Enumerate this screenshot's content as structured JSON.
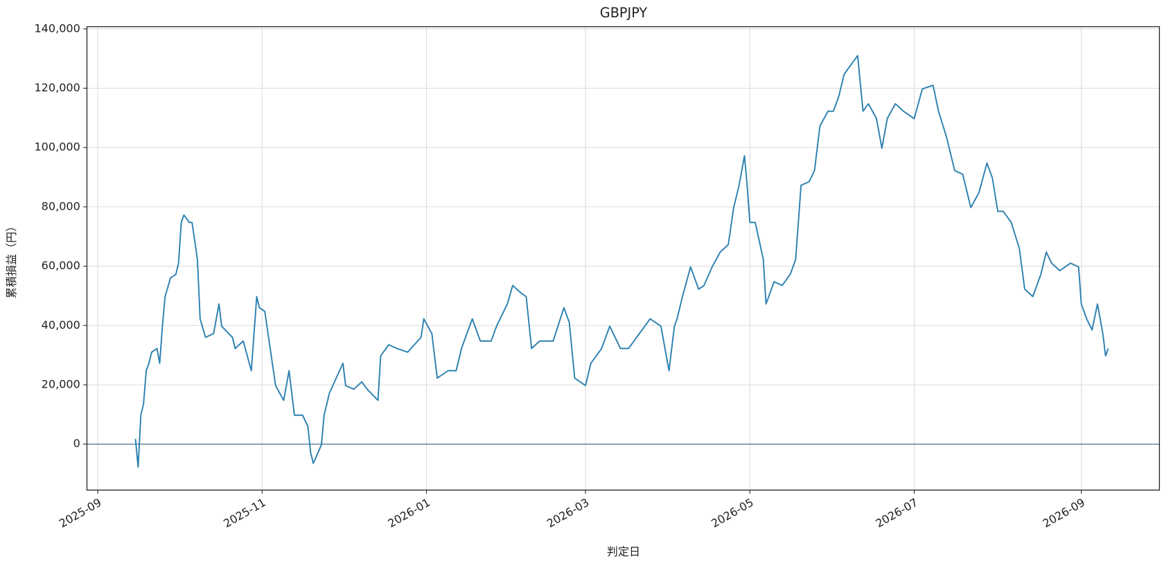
{
  "chart_data": {
    "type": "line",
    "title": "GBPJPY",
    "xlabel": "判定日",
    "ylabel": "累積損益（円）",
    "x": [
      "2025-09-15",
      "2025-09-16",
      "2025-09-17",
      "2025-09-18",
      "2025-09-19",
      "2025-09-20",
      "2025-09-21",
      "2025-09-23",
      "2025-09-24",
      "2025-09-25",
      "2025-09-26",
      "2025-09-28",
      "2025-09-30",
      "2025-10-01",
      "2025-10-02",
      "2025-10-03",
      "2025-10-05",
      "2025-10-06",
      "2025-10-08",
      "2025-10-09",
      "2025-10-11",
      "2025-10-14",
      "2025-10-16",
      "2025-10-17",
      "2025-10-21",
      "2025-10-22",
      "2025-10-25",
      "2025-10-28",
      "2025-10-30",
      "2025-10-31",
      "2025-11-02",
      "2025-11-04",
      "2025-11-06",
      "2025-11-09",
      "2025-11-11",
      "2025-11-13",
      "2025-11-16",
      "2025-11-18",
      "2025-11-19",
      "2025-11-20",
      "2025-11-23",
      "2025-11-24",
      "2025-11-26",
      "2025-12-01",
      "2025-12-02",
      "2025-12-05",
      "2025-12-08",
      "2025-12-10",
      "2025-12-14",
      "2025-12-15",
      "2025-12-18",
      "2025-12-21",
      "2025-12-25",
      "2025-12-30",
      "2025-12-31",
      "2026-01-03",
      "2026-01-05",
      "2026-01-09",
      "2026-01-12",
      "2026-01-14",
      "2026-01-18",
      "2026-01-21",
      "2026-01-25",
      "2026-01-27",
      "2026-01-31",
      "2026-02-02",
      "2026-02-05",
      "2026-02-07",
      "2026-02-09",
      "2026-02-12",
      "2026-02-17",
      "2026-02-21",
      "2026-02-23",
      "2026-02-25",
      "2026-03-01",
      "2026-03-03",
      "2026-03-07",
      "2026-03-10",
      "2026-03-14",
      "2026-03-17",
      "2026-03-22",
      "2026-03-25",
      "2026-03-29",
      "2026-04-01",
      "2026-04-03",
      "2026-04-04",
      "2026-04-06",
      "2026-04-09",
      "2026-04-12",
      "2026-04-14",
      "2026-04-17",
      "2026-04-20",
      "2026-04-23",
      "2026-04-25",
      "2026-04-27",
      "2026-04-29",
      "2026-04-30",
      "2026-05-01",
      "2026-05-03",
      "2026-05-06",
      "2026-05-07",
      "2026-05-10",
      "2026-05-13",
      "2026-05-16",
      "2026-05-18",
      "2026-05-20",
      "2026-05-23",
      "2026-05-25",
      "2026-05-27",
      "2026-05-30",
      "2026-06-01",
      "2026-06-03",
      "2026-06-05",
      "2026-06-07",
      "2026-06-10",
      "2026-06-12",
      "2026-06-14",
      "2026-06-17",
      "2026-06-19",
      "2026-06-21",
      "2026-06-24",
      "2026-06-27",
      "2026-07-01",
      "2026-07-04",
      "2026-07-08",
      "2026-07-10",
      "2026-07-13",
      "2026-07-16",
      "2026-07-19",
      "2026-07-22",
      "2026-07-25",
      "2026-07-28",
      "2026-07-30",
      "2026-08-01",
      "2026-08-03",
      "2026-08-06",
      "2026-08-09",
      "2026-08-11",
      "2026-08-14",
      "2026-08-17",
      "2026-08-19",
      "2026-08-21",
      "2026-08-24",
      "2026-08-28",
      "2026-08-31",
      "2026-09-01",
      "2026-09-03",
      "2026-09-05",
      "2026-09-07",
      "2026-09-09",
      "2026-09-10",
      "2026-09-11"
    ],
    "series": [
      {
        "name": "GBPJPY",
        "color": "#2b80b0",
        "values": [
          1750,
          -7750,
          9750,
          13500,
          24750,
          27250,
          31000,
          32250,
          27250,
          39750,
          49750,
          56000,
          57250,
          61000,
          74750,
          77250,
          74750,
          74750,
          62250,
          42250,
          36000,
          37250,
          47250,
          39750,
          36000,
          32250,
          34750,
          24750,
          49750,
          46000,
          44750,
          32250,
          19750,
          14750,
          24750,
          9750,
          9750,
          6000,
          -2750,
          -6500,
          -250,
          9750,
          17250,
          27250,
          19750,
          18500,
          21000,
          18500,
          14750,
          29750,
          33500,
          32250,
          31000,
          36000,
          42250,
          37250,
          22250,
          24750,
          24750,
          32250,
          42250,
          34750,
          34750,
          39750,
          47250,
          53500,
          51000,
          49750,
          32250,
          34750,
          34750,
          46000,
          41000,
          22250,
          19750,
          27250,
          32250,
          39750,
          32250,
          32250,
          38500,
          42250,
          39750,
          24750,
          39750,
          42250,
          49750,
          59750,
          52250,
          53500,
          59750,
          64750,
          67250,
          79750,
          87250,
          97250,
          87250,
          74750,
          74750,
          62250,
          47250,
          54750,
          53500,
          57250,
          62250,
          87250,
          88500,
          92250,
          107250,
          112250,
          112250,
          117250,
          124750,
          127250,
          131000,
          112250,
          114750,
          109750,
          99750,
          109750,
          114750,
          112250,
          109750,
          119750,
          121000,
          112250,
          103500,
          92250,
          91000,
          79750,
          84750,
          94750,
          89750,
          78500,
          78500,
          74750,
          66000,
          52250,
          49750,
          57250,
          64750,
          61000,
          58500,
          61000,
          59750,
          47250,
          42250,
          38500,
          47250,
          37250,
          29750,
          32250
        ]
      }
    ],
    "xlim": [
      "2025-08-28",
      "2026-09-30"
    ],
    "xticks": [
      "2025-09",
      "2025-11",
      "2026-01",
      "2026-03",
      "2026-05",
      "2026-07",
      "2026-09"
    ],
    "ylim": [
      -15500,
      140750
    ],
    "yticks": [
      0,
      {
        "value": 20000,
        "label": "20,000"
      },
      {
        "value": 40000,
        "label": "40,000"
      },
      {
        "value": 60000,
        "label": "60,000"
      },
      {
        "value": 80000,
        "label": "80,000"
      },
      {
        "value": 100000,
        "label": "100,000"
      },
      {
        "value": 120000,
        "label": "120,000"
      },
      {
        "value": 140000,
        "label": "140,000"
      }
    ],
    "hline": 0,
    "hline_color": "#5b7d93",
    "grid": true
  }
}
